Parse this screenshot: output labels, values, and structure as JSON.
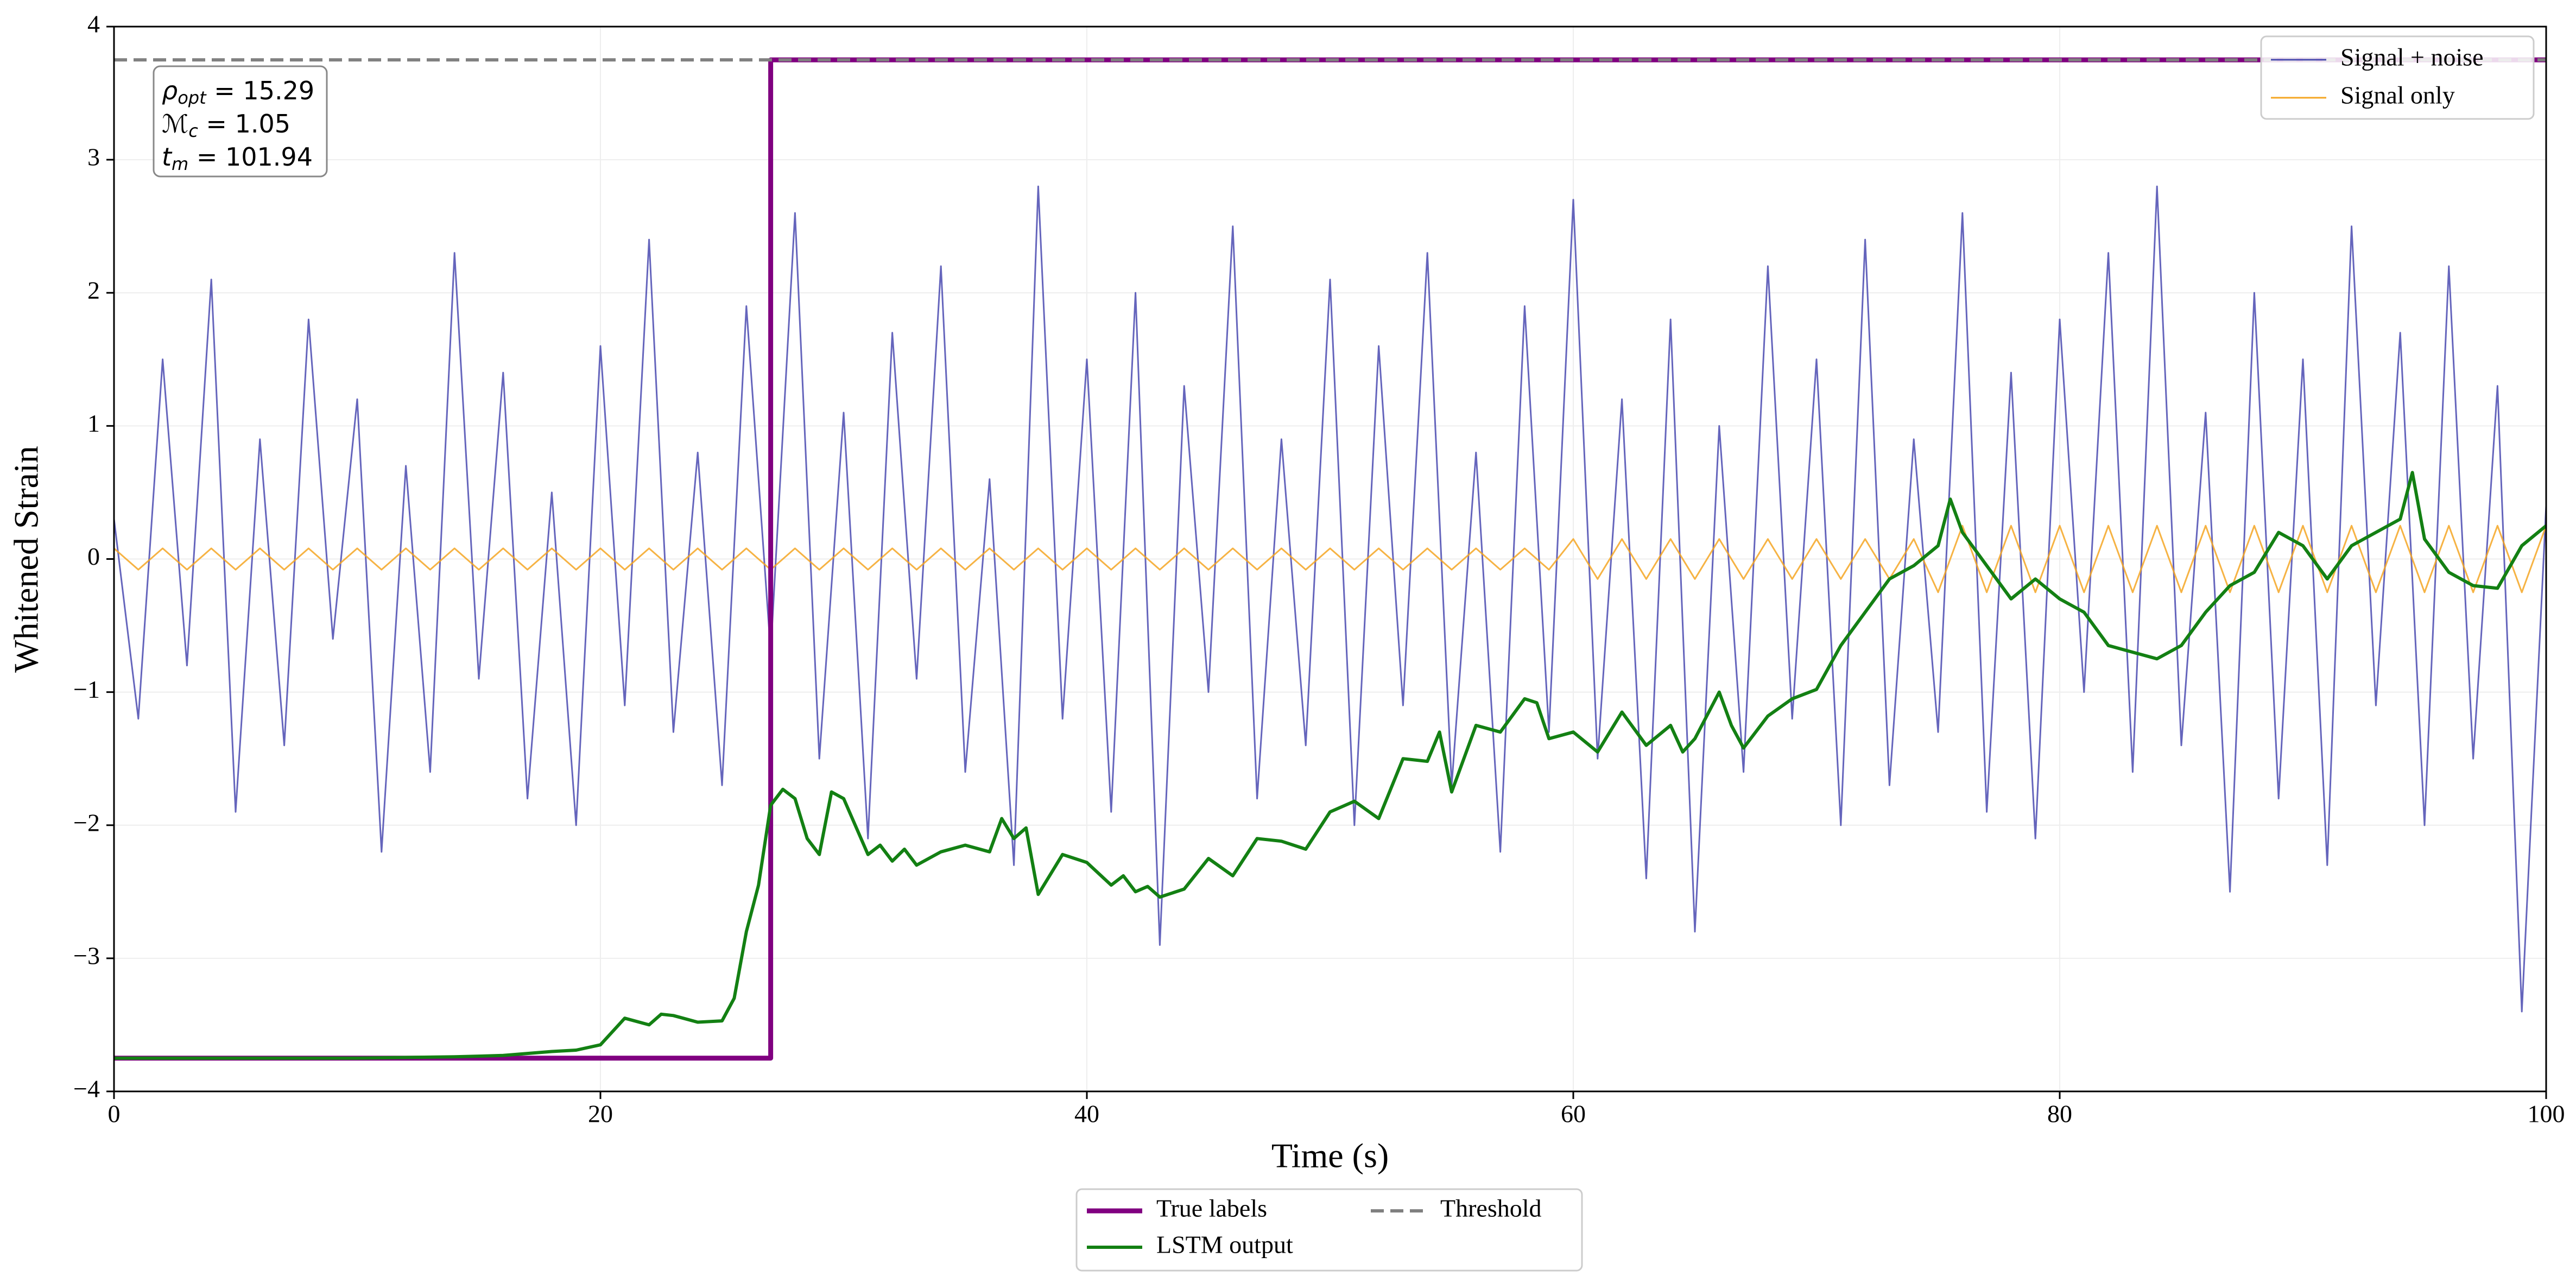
{
  "chart_data": {
    "type": "line",
    "xlabel": "Time (s)",
    "ylabel": "Whitened Strain",
    "xlim": [
      0,
      100
    ],
    "ylim": [
      -4,
      4
    ],
    "xticks": [
      0,
      20,
      40,
      60,
      80,
      100
    ],
    "yticks": [
      {
        "value": -4,
        "label": "−4"
      },
      {
        "value": -3,
        "label": "−3"
      },
      {
        "value": -2,
        "label": "−2"
      },
      {
        "value": -1,
        "label": "−1"
      },
      0,
      1,
      2,
      3,
      4
    ],
    "grid": true,
    "annotation": [
      {
        "symbol": "ρ",
        "subscript": "opt",
        "text": " = 15.29"
      },
      {
        "symbol": "ℳ",
        "subscript": "c",
        "text": " = 1.05"
      },
      {
        "symbol": "t",
        "subscript": "m",
        "text": " = 101.94"
      }
    ],
    "series": [
      {
        "name": "Signal + noise",
        "color": "#4a4ab0",
        "legend": "upper right",
        "style": "solid",
        "width": 3,
        "x": [
          0,
          1,
          2,
          3,
          4,
          5,
          6,
          7,
          8,
          9,
          10,
          11,
          12,
          13,
          14,
          15,
          16,
          17,
          18,
          19,
          20,
          21,
          22,
          23,
          24,
          25,
          26,
          27,
          28,
          29,
          30,
          31,
          32,
          33,
          34,
          35,
          36,
          37,
          38,
          39,
          40,
          41,
          42,
          43,
          44,
          45,
          46,
          47,
          48,
          49,
          50,
          51,
          52,
          53,
          54,
          55,
          56,
          57,
          58,
          59,
          60,
          61,
          62,
          63,
          64,
          65,
          66,
          67,
          68,
          69,
          70,
          71,
          72,
          73,
          74,
          75,
          76,
          77,
          78,
          79,
          80,
          81,
          82,
          83,
          84,
          85,
          86,
          87,
          88,
          89,
          90,
          91,
          92,
          93,
          94,
          95,
          96,
          97,
          98,
          99,
          100
        ],
        "values": [
          0.3,
          -1.2,
          1.5,
          -0.8,
          2.1,
          -1.9,
          0.9,
          -1.4,
          1.8,
          -0.6,
          1.2,
          -2.2,
          0.7,
          -1.6,
          2.3,
          -0.9,
          1.4,
          -1.8,
          0.5,
          -2.0,
          1.6,
          -1.1,
          2.4,
          -1.3,
          0.8,
          -1.7,
          1.9,
          -0.7,
          2.6,
          -1.5,
          1.1,
          -2.1,
          1.7,
          -0.9,
          2.2,
          -1.6,
          0.6,
          -2.3,
          2.8,
          -1.2,
          1.5,
          -1.9,
          2.0,
          -2.9,
          1.3,
          -1.0,
          2.5,
          -1.8,
          0.9,
          -1.4,
          2.1,
          -2.0,
          1.6,
          -1.1,
          2.3,
          -1.7,
          0.8,
          -2.2,
          1.9,
          -1.3,
          2.7,
          -1.5,
          1.2,
          -2.4,
          1.8,
          -2.8,
          1.0,
          -1.6,
          2.2,
          -1.2,
          1.5,
          -2.0,
          2.4,
          -1.7,
          0.9,
          -1.3,
          2.6,
          -1.9,
          1.4,
          -2.1,
          1.8,
          -1.0,
          2.3,
          -1.6,
          2.8,
          -1.4,
          1.1,
          -2.5,
          2.0,
          -1.8,
          1.5,
          -2.3,
          2.5,
          -1.1,
          1.7,
          -2.0,
          2.2,
          -1.5,
          1.3,
          -3.4,
          0.4
        ]
      },
      {
        "name": "Signal only",
        "color": "#f5a623",
        "legend": "upper right",
        "style": "solid",
        "width": 3,
        "x": [
          0,
          1,
          2,
          3,
          4,
          5,
          6,
          7,
          8,
          9,
          10,
          11,
          12,
          13,
          14,
          15,
          16,
          17,
          18,
          19,
          20,
          21,
          22,
          23,
          24,
          25,
          26,
          27,
          28,
          29,
          30,
          31,
          32,
          33,
          34,
          35,
          36,
          37,
          38,
          39,
          40,
          41,
          42,
          43,
          44,
          45,
          46,
          47,
          48,
          49,
          50,
          51,
          52,
          53,
          54,
          55,
          56,
          57,
          58,
          59,
          60,
          61,
          62,
          63,
          64,
          65,
          66,
          67,
          68,
          69,
          70,
          71,
          72,
          73,
          74,
          75,
          76,
          77,
          78,
          79,
          80,
          81,
          82,
          83,
          84,
          85,
          86,
          87,
          88,
          89,
          90,
          91,
          92,
          93,
          94,
          95,
          96,
          97,
          98,
          99,
          100
        ],
        "values": [
          0.08,
          -0.08,
          0.08,
          -0.08,
          0.08,
          -0.08,
          0.08,
          -0.08,
          0.08,
          -0.08,
          0.08,
          -0.08,
          0.08,
          -0.08,
          0.08,
          -0.08,
          0.08,
          -0.08,
          0.08,
          -0.08,
          0.08,
          -0.08,
          0.08,
          -0.08,
          0.08,
          -0.08,
          0.08,
          -0.08,
          0.08,
          -0.08,
          0.08,
          -0.08,
          0.08,
          -0.08,
          0.08,
          -0.08,
          0.08,
          -0.08,
          0.08,
          -0.08,
          0.08,
          -0.08,
          0.08,
          -0.08,
          0.08,
          -0.08,
          0.08,
          -0.08,
          0.08,
          -0.08,
          0.08,
          -0.08,
          0.08,
          -0.08,
          0.08,
          -0.08,
          0.08,
          -0.08,
          0.08,
          -0.08,
          0.15,
          -0.15,
          0.15,
          -0.15,
          0.15,
          -0.15,
          0.15,
          -0.15,
          0.15,
          -0.15,
          0.15,
          -0.15,
          0.15,
          -0.15,
          0.15,
          -0.25,
          0.25,
          -0.25,
          0.25,
          -0.25,
          0.25,
          -0.25,
          0.25,
          -0.25,
          0.25,
          -0.25,
          0.25,
          -0.25,
          0.25,
          -0.25,
          0.25,
          -0.25,
          0.25,
          -0.25,
          0.25,
          -0.25,
          0.25,
          -0.25,
          0.25,
          -0.25,
          0.25
        ]
      },
      {
        "name": "True labels",
        "color": "#800080",
        "legend": "below",
        "style": "solid",
        "width": 9,
        "x": [
          0,
          27,
          27,
          100
        ],
        "values": [
          -3.75,
          -3.75,
          3.75,
          3.75
        ]
      },
      {
        "name": "LSTM output",
        "color": "#138013",
        "legend": "below",
        "style": "solid",
        "width": 6,
        "x": [
          0,
          5,
          10,
          14,
          16,
          18,
          19,
          20,
          21,
          22,
          22.5,
          23,
          24,
          25,
          25.5,
          26,
          26.5,
          27,
          27.5,
          28,
          28.5,
          29,
          29.5,
          30,
          31,
          31.5,
          32,
          32.5,
          33,
          34,
          35,
          36,
          36.5,
          37,
          37.5,
          38,
          39,
          40,
          41,
          41.5,
          42,
          42.5,
          43,
          44,
          45,
          46,
          47,
          48,
          49,
          50,
          51,
          52,
          53,
          54,
          54.5,
          55,
          56,
          57,
          58,
          58.5,
          59,
          60,
          61,
          62,
          63,
          64,
          64.5,
          65,
          66,
          66.5,
          67,
          68,
          69,
          70,
          71,
          72,
          73,
          74,
          75,
          75.5,
          76,
          77,
          78,
          79,
          80,
          81,
          82,
          83,
          84,
          85,
          86,
          87,
          88,
          89,
          90,
          91,
          92,
          93,
          94,
          94.5,
          95,
          96,
          97,
          98,
          99,
          100
        ],
        "values": [
          -3.75,
          -3.75,
          -3.75,
          -3.74,
          -3.73,
          -3.7,
          -3.69,
          -3.65,
          -3.45,
          -3.5,
          -3.42,
          -3.43,
          -3.48,
          -3.47,
          -3.3,
          -2.8,
          -2.45,
          -1.85,
          -1.73,
          -1.8,
          -2.1,
          -2.22,
          -1.75,
          -1.8,
          -2.22,
          -2.15,
          -2.27,
          -2.18,
          -2.3,
          -2.2,
          -2.15,
          -2.2,
          -1.95,
          -2.1,
          -2.02,
          -2.52,
          -2.22,
          -2.28,
          -2.45,
          -2.38,
          -2.5,
          -2.46,
          -2.54,
          -2.48,
          -2.25,
          -2.38,
          -2.1,
          -2.12,
          -2.18,
          -1.9,
          -1.82,
          -1.95,
          -1.5,
          -1.52,
          -1.3,
          -1.75,
          -1.25,
          -1.3,
          -1.05,
          -1.08,
          -1.35,
          -1.3,
          -1.45,
          -1.15,
          -1.4,
          -1.25,
          -1.45,
          -1.35,
          -1.0,
          -1.25,
          -1.42,
          -1.18,
          -1.05,
          -0.98,
          -0.65,
          -0.4,
          -0.15,
          -0.05,
          0.1,
          0.45,
          0.2,
          -0.05,
          -0.3,
          -0.15,
          -0.3,
          -0.4,
          -0.65,
          -0.7,
          -0.75,
          -0.65,
          -0.4,
          -0.2,
          -0.1,
          0.2,
          0.1,
          -0.15,
          0.1,
          0.2,
          0.3,
          0.65,
          0.15,
          -0.1,
          -0.2,
          -0.22,
          0.1,
          0.25
        ]
      },
      {
        "name": "Threshold",
        "color": "#808080",
        "legend": "below",
        "style": "dashed",
        "width": 6,
        "x": [
          0,
          100
        ],
        "values": [
          3.75,
          3.75
        ]
      }
    ]
  }
}
